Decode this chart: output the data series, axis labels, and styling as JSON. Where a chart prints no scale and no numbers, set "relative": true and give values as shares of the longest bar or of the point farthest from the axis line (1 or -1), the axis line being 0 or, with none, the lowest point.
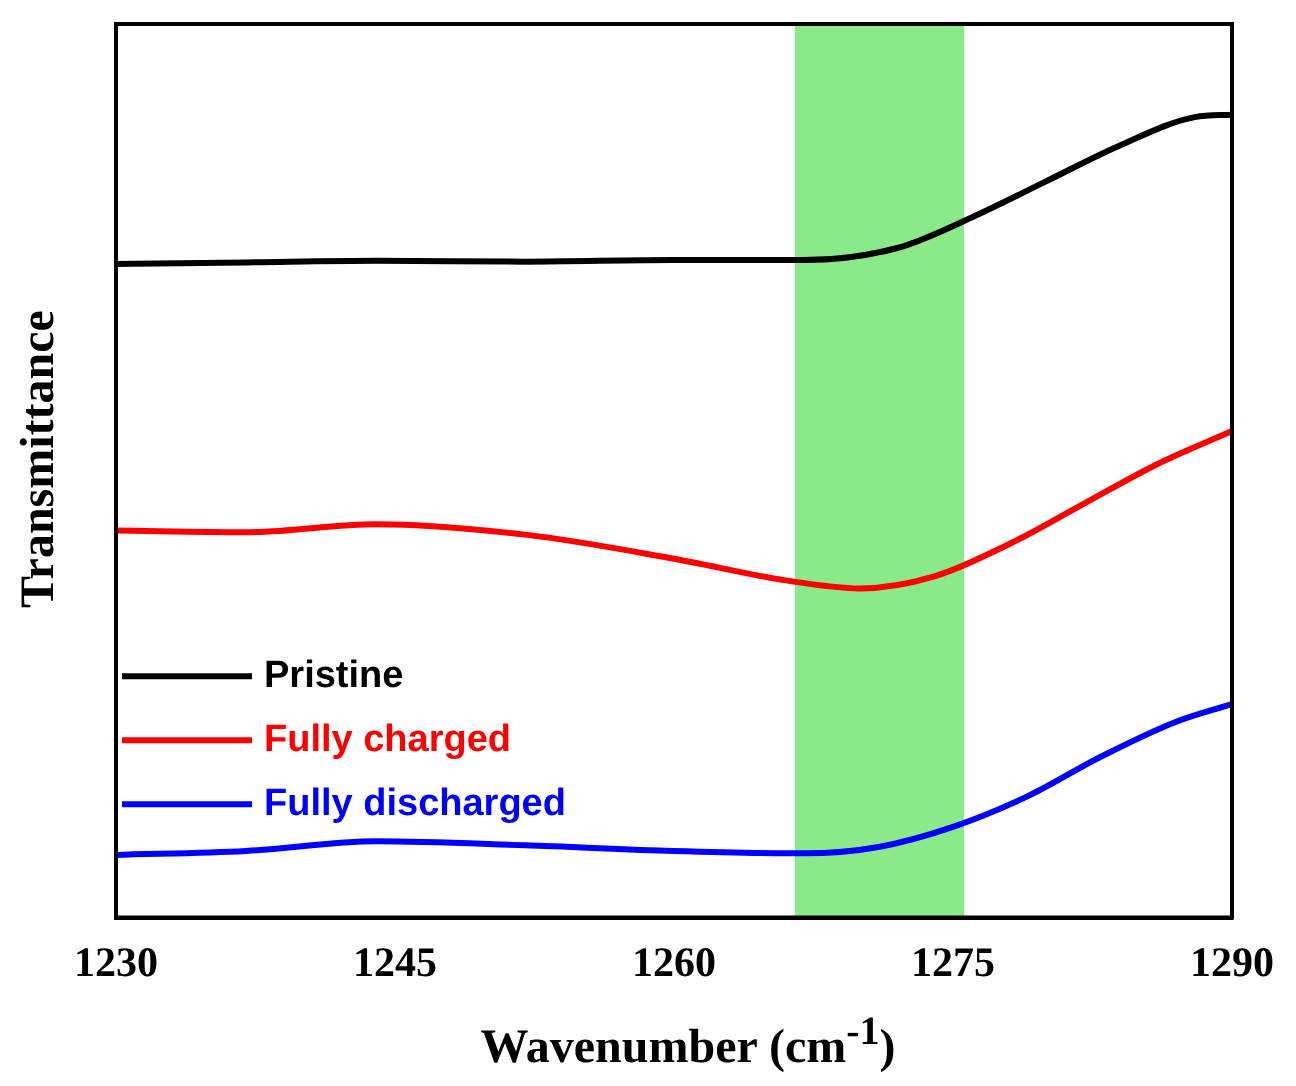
{
  "chart_data": {
    "type": "line",
    "xlabel": "Wavenumber (cm$^{-1}$)",
    "ylabel": "Transmittance",
    "relative": true,
    "xlim": [
      1230,
      1290
    ],
    "xticks": [
      1230,
      1245,
      1260,
      1275,
      1290
    ],
    "legend": "left",
    "marker": "none",
    "line_style": "solid",
    "grid": false,
    "bands": [
      {
        "axis": "x",
        "from": 1266.5,
        "to": 1275.6,
        "color": "#8aea8a"
      }
    ],
    "series": [
      {
        "name": "Pristine",
        "color": "#000000",
        "x": [
          1230,
          1237,
          1244,
          1252,
          1260,
          1267,
          1272,
          1276,
          1280,
          1284,
          1288,
          1290
        ],
        "values": [
          0.814,
          0.816,
          0.818,
          0.817,
          0.819,
          0.819,
          0.834,
          0.872,
          0.917,
          0.962,
          0.997,
          1
        ]
      },
      {
        "name": "Fully charged",
        "color": "#ff0000",
        "x": [
          1230,
          1237,
          1244,
          1252,
          1260,
          1266,
          1270,
          1274,
          1278,
          1282,
          1286,
          1290
        ],
        "values": [
          0.482,
          0.48,
          0.49,
          0.477,
          0.447,
          0.42,
          0.41,
          0.425,
          0.465,
          0.515,
          0.565,
          0.606
        ]
      },
      {
        "name": "Fully discharged",
        "color": "#0000ff",
        "x": [
          1230,
          1237,
          1244,
          1252,
          1260,
          1267,
          1271,
          1275,
          1279,
          1283,
          1287,
          1290
        ],
        "values": [
          0.078,
          0.083,
          0.095,
          0.09,
          0.083,
          0.08,
          0.088,
          0.113,
          0.151,
          0.201,
          0.244,
          0.266
        ]
      }
    ]
  }
}
